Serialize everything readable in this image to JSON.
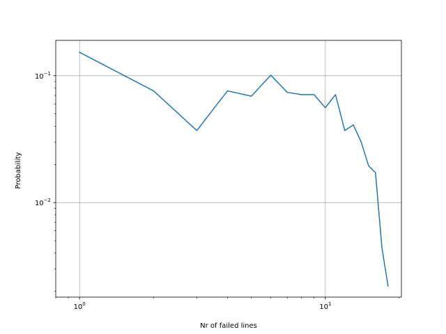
{
  "chart_data": {
    "type": "line",
    "title": "",
    "xlabel": "Nr of failed lines",
    "ylabel": "Probability",
    "xscale": "log",
    "yscale": "log",
    "xlim": [
      0.8,
      20.4
    ],
    "ylim": [
      0.0018,
      0.19
    ],
    "grid": true,
    "x_major_ticks": [
      1,
      10
    ],
    "x_tick_labels": [
      {
        "base": "10",
        "exp": "0"
      },
      {
        "base": "10",
        "exp": "1"
      }
    ],
    "y_major_ticks": [
      0.01,
      0.1
    ],
    "y_tick_labels": [
      {
        "base": "10",
        "exp": "−2"
      },
      {
        "base": "10",
        "exp": "−1"
      }
    ],
    "series": [
      {
        "color": "#1f77b4",
        "x": [
          1,
          2,
          3,
          4,
          5,
          6,
          7,
          8,
          9,
          10,
          11,
          12,
          13,
          14,
          15,
          16,
          17,
          18
        ],
        "y": [
          0.153,
          0.076,
          0.037,
          0.076,
          0.069,
          0.101,
          0.074,
          0.071,
          0.071,
          0.056,
          0.071,
          0.037,
          0.041,
          0.03,
          0.0195,
          0.0172,
          0.0044,
          0.0022
        ]
      }
    ]
  }
}
